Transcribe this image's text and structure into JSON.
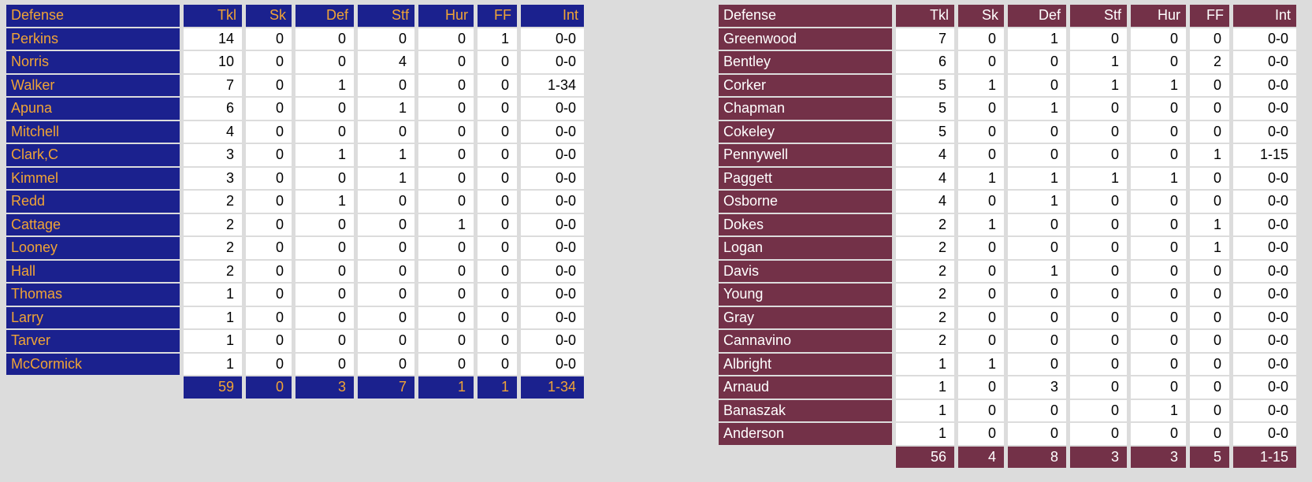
{
  "page": {
    "background": "#dcdcdc",
    "description_labels": {
      "stat_section": "Defense"
    }
  },
  "tables": [
    {
      "team": "blue-team",
      "colors": {
        "header_bg": "#1b218e",
        "header_text": "#f0a436",
        "cell_bg": "#ffffff",
        "cell_text": "#000000"
      },
      "header": [
        "Defense",
        "Tkl",
        "Sk",
        "Def",
        "Stf",
        "Hur",
        "FF",
        "Int"
      ],
      "rows": [
        {
          "name": "Perkins",
          "values": [
            "14",
            "0",
            "0",
            "0",
            "0",
            "1",
            "0-0"
          ]
        },
        {
          "name": "Norris",
          "values": [
            "10",
            "0",
            "0",
            "4",
            "0",
            "0",
            "0-0"
          ]
        },
        {
          "name": "Walker",
          "values": [
            "7",
            "0",
            "1",
            "0",
            "0",
            "0",
            "1-34"
          ]
        },
        {
          "name": "Apuna",
          "values": [
            "6",
            "0",
            "0",
            "1",
            "0",
            "0",
            "0-0"
          ]
        },
        {
          "name": "Mitchell",
          "values": [
            "4",
            "0",
            "0",
            "0",
            "0",
            "0",
            "0-0"
          ]
        },
        {
          "name": "Clark,C",
          "values": [
            "3",
            "0",
            "1",
            "1",
            "0",
            "0",
            "0-0"
          ]
        },
        {
          "name": "Kimmel",
          "values": [
            "3",
            "0",
            "0",
            "1",
            "0",
            "0",
            "0-0"
          ]
        },
        {
          "name": "Redd",
          "values": [
            "2",
            "0",
            "1",
            "0",
            "0",
            "0",
            "0-0"
          ]
        },
        {
          "name": "Cattage",
          "values": [
            "2",
            "0",
            "0",
            "0",
            "1",
            "0",
            "0-0"
          ]
        },
        {
          "name": "Looney",
          "values": [
            "2",
            "0",
            "0",
            "0",
            "0",
            "0",
            "0-0"
          ]
        },
        {
          "name": "Hall",
          "values": [
            "2",
            "0",
            "0",
            "0",
            "0",
            "0",
            "0-0"
          ]
        },
        {
          "name": "Thomas",
          "values": [
            "1",
            "0",
            "0",
            "0",
            "0",
            "0",
            "0-0"
          ]
        },
        {
          "name": "Larry",
          "values": [
            "1",
            "0",
            "0",
            "0",
            "0",
            "0",
            "0-0"
          ]
        },
        {
          "name": "Tarver",
          "values": [
            "1",
            "0",
            "0",
            "0",
            "0",
            "0",
            "0-0"
          ]
        },
        {
          "name": "McCormick",
          "values": [
            "1",
            "0",
            "0",
            "0",
            "0",
            "0",
            "0-0"
          ]
        }
      ],
      "totals": [
        "59",
        "0",
        "3",
        "7",
        "1",
        "1",
        "1-34"
      ]
    },
    {
      "team": "maroon-team",
      "colors": {
        "header_bg": "#733148",
        "header_text": "#ffffff",
        "cell_bg": "#ffffff",
        "cell_text": "#000000"
      },
      "header": [
        "Defense",
        "Tkl",
        "Sk",
        "Def",
        "Stf",
        "Hur",
        "FF",
        "Int"
      ],
      "rows": [
        {
          "name": "Greenwood",
          "values": [
            "7",
            "0",
            "1",
            "0",
            "0",
            "0",
            "0-0"
          ]
        },
        {
          "name": "Bentley",
          "values": [
            "6",
            "0",
            "0",
            "1",
            "0",
            "2",
            "0-0"
          ]
        },
        {
          "name": "Corker",
          "values": [
            "5",
            "1",
            "0",
            "1",
            "1",
            "0",
            "0-0"
          ]
        },
        {
          "name": "Chapman",
          "values": [
            "5",
            "0",
            "1",
            "0",
            "0",
            "0",
            "0-0"
          ]
        },
        {
          "name": "Cokeley",
          "values": [
            "5",
            "0",
            "0",
            "0",
            "0",
            "0",
            "0-0"
          ]
        },
        {
          "name": "Pennywell",
          "values": [
            "4",
            "0",
            "0",
            "0",
            "0",
            "1",
            "1-15"
          ]
        },
        {
          "name": "Paggett",
          "values": [
            "4",
            "1",
            "1",
            "1",
            "1",
            "0",
            "0-0"
          ]
        },
        {
          "name": "Osborne",
          "values": [
            "4",
            "0",
            "1",
            "0",
            "0",
            "0",
            "0-0"
          ]
        },
        {
          "name": "Dokes",
          "values": [
            "2",
            "1",
            "0",
            "0",
            "0",
            "1",
            "0-0"
          ]
        },
        {
          "name": "Logan",
          "values": [
            "2",
            "0",
            "0",
            "0",
            "0",
            "1",
            "0-0"
          ]
        },
        {
          "name": "Davis",
          "values": [
            "2",
            "0",
            "1",
            "0",
            "0",
            "0",
            "0-0"
          ]
        },
        {
          "name": "Young",
          "values": [
            "2",
            "0",
            "0",
            "0",
            "0",
            "0",
            "0-0"
          ]
        },
        {
          "name": "Gray",
          "values": [
            "2",
            "0",
            "0",
            "0",
            "0",
            "0",
            "0-0"
          ]
        },
        {
          "name": "Cannavino",
          "values": [
            "2",
            "0",
            "0",
            "0",
            "0",
            "0",
            "0-0"
          ]
        },
        {
          "name": "Albright",
          "values": [
            "1",
            "1",
            "0",
            "0",
            "0",
            "0",
            "0-0"
          ]
        },
        {
          "name": "Arnaud",
          "values": [
            "1",
            "0",
            "3",
            "0",
            "0",
            "0",
            "0-0"
          ]
        },
        {
          "name": "Banaszak",
          "values": [
            "1",
            "0",
            "0",
            "0",
            "1",
            "0",
            "0-0"
          ]
        },
        {
          "name": "Anderson",
          "values": [
            "1",
            "0",
            "0",
            "0",
            "0",
            "0",
            "0-0"
          ]
        }
      ],
      "totals": [
        "56",
        "4",
        "8",
        "3",
        "3",
        "5",
        "1-15"
      ]
    }
  ]
}
